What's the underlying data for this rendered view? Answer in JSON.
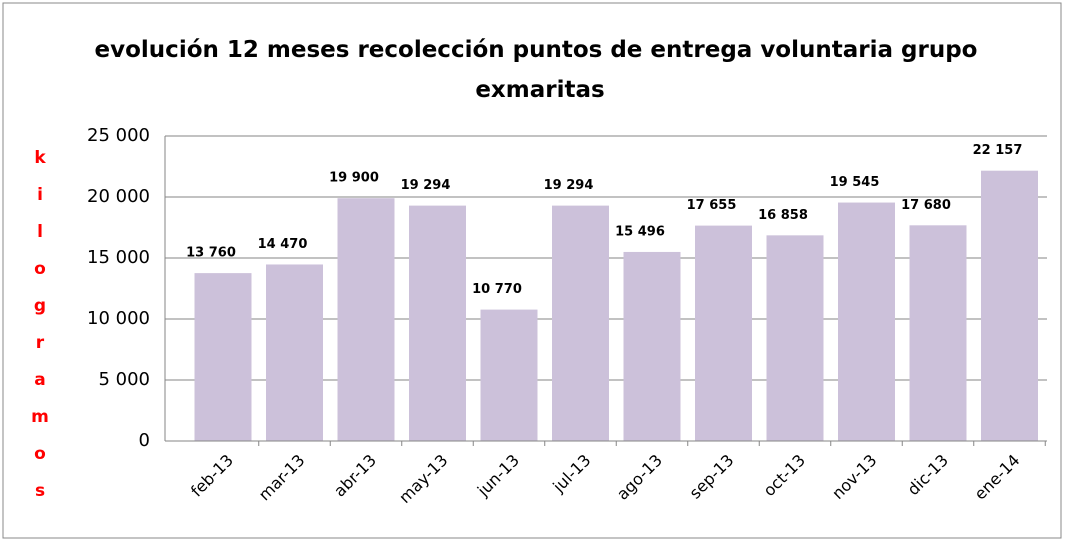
{
  "chart_data": {
    "type": "bar",
    "title": "evolución 12 meses recolección puntos de entrega voluntaria grupo exmaritas",
    "y_label": "kilogramos",
    "categories": [
      "feb-13",
      "mar-13",
      "abr-13",
      "may-13",
      "jun-13",
      "jul-13",
      "ago-13",
      "sep-13",
      "oct-13",
      "nov-13",
      "dic-13",
      "ene-14"
    ],
    "values": [
      13760,
      14470,
      19900,
      19294,
      10770,
      19294,
      15496,
      17655,
      16858,
      19545,
      17680,
      22157
    ],
    "value_labels": [
      "13 760",
      "14 470",
      "19 900",
      "19 294",
      "10 770",
      "19 294",
      "15 496",
      "17 655",
      "16 858",
      "19 545",
      "17 680",
      "22 157"
    ],
    "color": "#ccc1da",
    "ylim": [
      0,
      25000
    ],
    "yticks": [
      0,
      {
        "value": 5000,
        "label": "5 000"
      },
      {
        "value": 10000,
        "label": "10 000"
      },
      {
        "value": 15000,
        "label": "15 000"
      },
      {
        "value": 20000,
        "label": "20 000"
      },
      {
        "value": 25000,
        "label": "25 000"
      }
    ],
    "grid": true
  }
}
